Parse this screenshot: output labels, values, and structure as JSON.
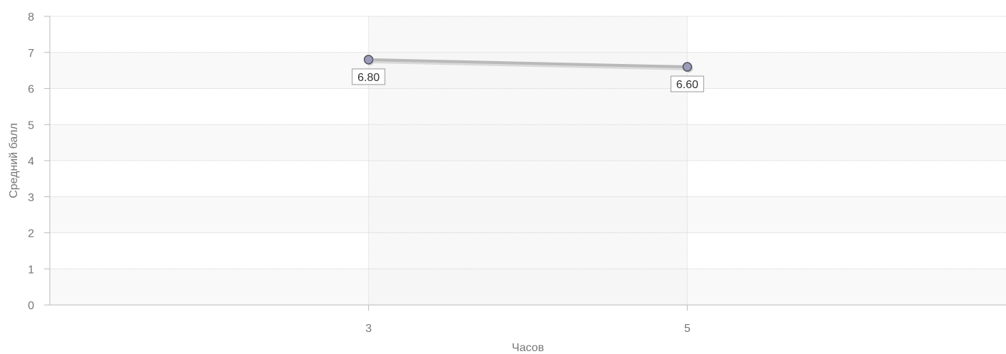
{
  "chart_data": {
    "type": "line",
    "x": [
      3,
      5
    ],
    "categories": [
      "3",
      "5"
    ],
    "series": [
      {
        "values": [
          6.8,
          6.6
        ],
        "labels": [
          "6.80",
          "6.60"
        ]
      }
    ],
    "xlabel": "Часов",
    "ylabel": "Средний балл",
    "ylim": [
      0,
      8
    ],
    "yticks": [
      "0",
      "1",
      "2",
      "3",
      "4",
      "5",
      "6",
      "7",
      "8"
    ],
    "grid": true,
    "colors": {
      "line": "#b9b9b9",
      "marker_fill": "#9c9cb8",
      "marker_stroke": "#555566",
      "band_alt": "#f9f9f9",
      "plot_band_x": "#f4f4f4"
    }
  }
}
